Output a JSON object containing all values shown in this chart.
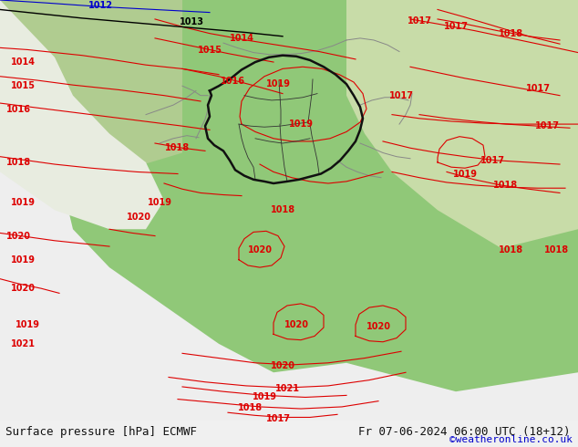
{
  "title_left": "Surface pressure [hPa] ECMWF",
  "title_right": "Fr 07-06-2024 06:00 UTC (18+12)",
  "credit": "©weatheronline.co.uk",
  "bg_color_land_green": "#90c878",
  "bg_color_land_light": "#d8e8c0",
  "bg_color_sea": "#e8e8e8",
  "bg_color_white": "#f0f0f0",
  "contour_color_red": "#dd0000",
  "contour_color_black": "#000000",
  "contour_color_blue": "#0000cc",
  "contour_color_gray": "#808080",
  "bottom_bar_color": "#e8e8d8",
  "credit_color": "#0000cc",
  "title_fontsize": 9,
  "credit_fontsize": 8,
  "figsize": [
    6.34,
    4.9
  ],
  "dpi": 100
}
